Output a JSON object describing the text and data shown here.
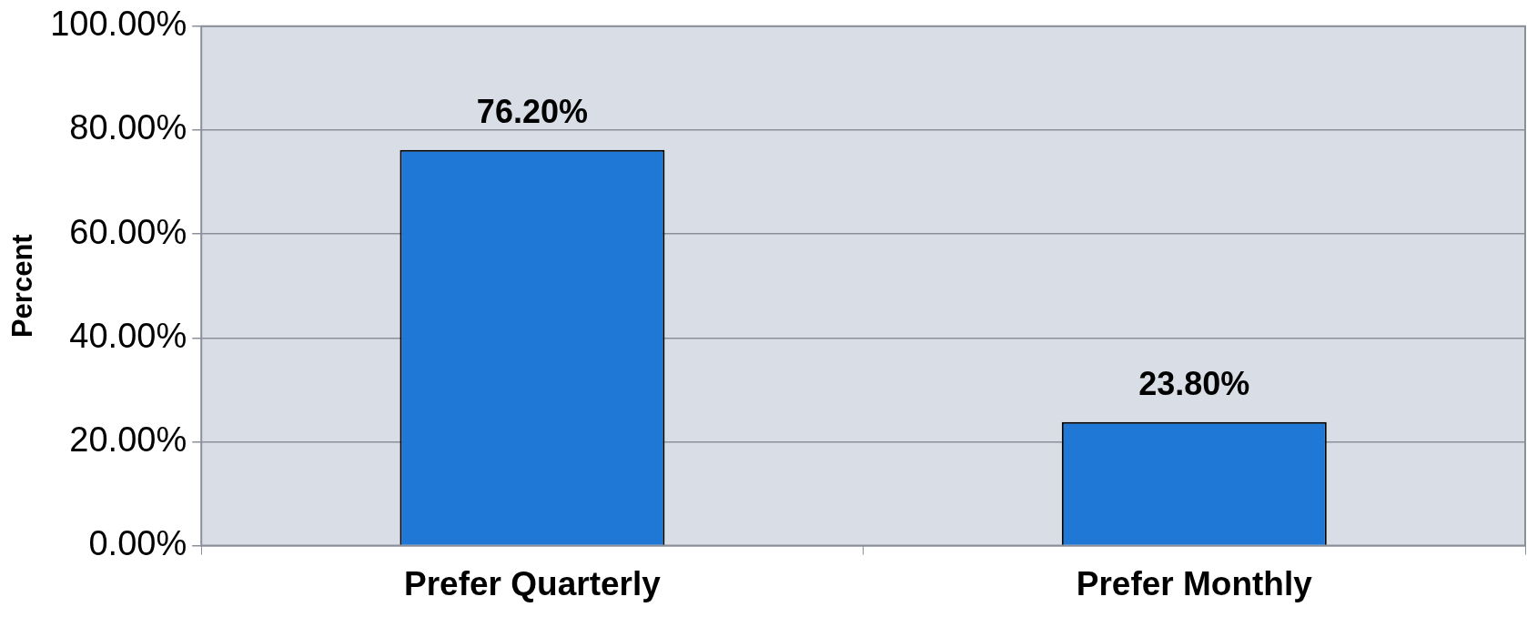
{
  "chart_data": {
    "type": "bar",
    "ylabel": "Percent",
    "categories": [
      "Prefer Quarterly",
      "Prefer Monthly"
    ],
    "values": [
      76.2,
      23.8
    ],
    "color": "#1f78d6",
    "value_labels": [
      "76.20%",
      "23.80%"
    ],
    "ylim": [
      0,
      100
    ],
    "yticks": [
      {
        "value": 0,
        "label": "0.00%"
      },
      {
        "value": 20,
        "label": "20.00%"
      },
      {
        "value": 40,
        "label": "40.00%"
      },
      {
        "value": 60,
        "label": "60.00%"
      },
      {
        "value": 80,
        "label": "80.00%"
      },
      {
        "value": 100,
        "label": "100.00%"
      }
    ],
    "grid": "y",
    "legend": false
  }
}
